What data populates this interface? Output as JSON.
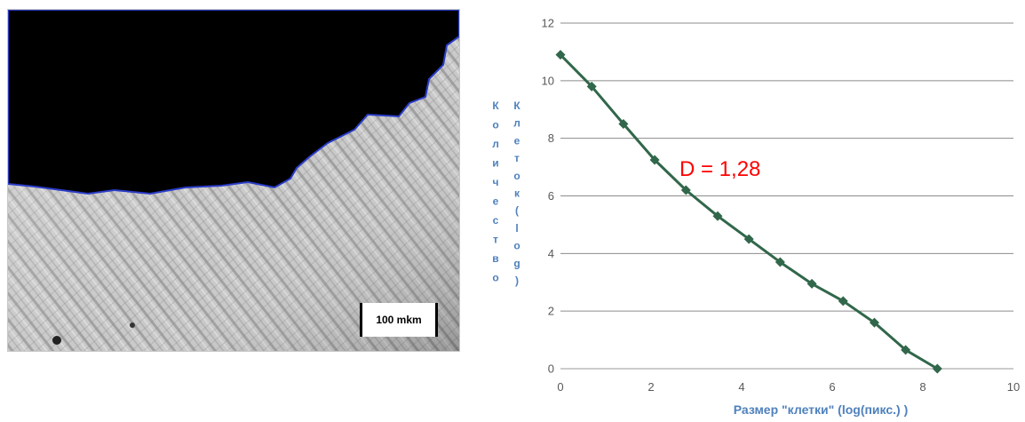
{
  "micrograph": {
    "scale_label": "100 mkm"
  },
  "chart_data": {
    "type": "line",
    "x": [
      0,
      0.69,
      1.39,
      2.08,
      2.77,
      3.47,
      4.16,
      4.85,
      5.55,
      6.24,
      6.93,
      7.62,
      8.32
    ],
    "y": [
      10.9,
      9.8,
      8.5,
      7.25,
      6.2,
      5.3,
      4.5,
      3.7,
      2.95,
      2.35,
      1.6,
      0.65,
      0
    ],
    "xlim": [
      0,
      10
    ],
    "ylim": [
      0,
      12
    ],
    "xticks": [
      "0",
      "2",
      "4",
      "6",
      "8",
      "10"
    ],
    "yticks": [
      "0",
      "2",
      "4",
      "6",
      "8",
      "10",
      "12"
    ],
    "xlabel": "Размер \"клетки\" (log(пикс.) )",
    "ylabel_col1": [
      "К",
      "о",
      "л",
      "и",
      "ч",
      "е",
      "с",
      "т",
      "в",
      "о"
    ],
    "ylabel_col2": [
      "К",
      "л",
      "е",
      "т",
      "о",
      "к",
      "(",
      "l",
      "o",
      "g",
      ")"
    ],
    "annotation": "D = 1,28",
    "grid": true,
    "series_color": "#31674a",
    "annotation_color": "#ff0000",
    "axis_title_color": "#4f81bd"
  }
}
